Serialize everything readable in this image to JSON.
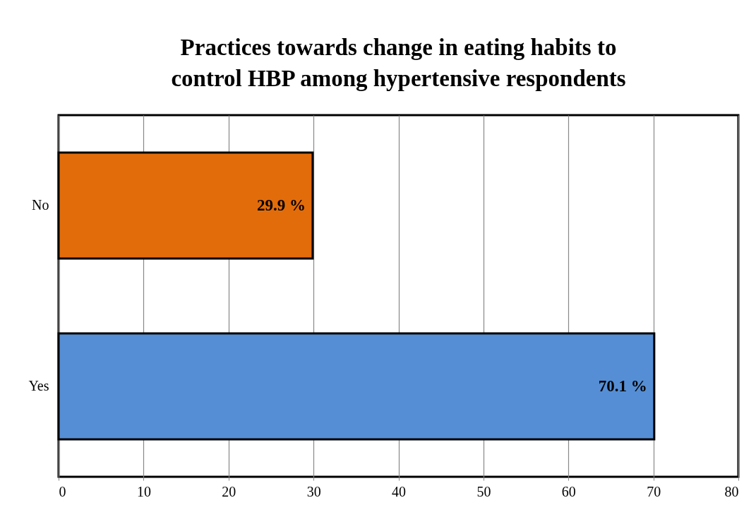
{
  "chart_data": {
    "type": "bar",
    "orientation": "horizontal",
    "title": "Practices towards change in eating habits to control HBP among hypertensive respondents",
    "categories": [
      "No",
      "Yes"
    ],
    "values": [
      29.9,
      70.1
    ],
    "colors": [
      "#e36c0a",
      "#558ed5"
    ],
    "value_labels": [
      "29.9 %",
      "70.1 %"
    ],
    "xlim": [
      0,
      80
    ],
    "xticks": [
      0,
      10,
      20,
      30,
      40,
      50,
      60,
      70,
      80
    ],
    "grid": "x",
    "legend": false
  }
}
